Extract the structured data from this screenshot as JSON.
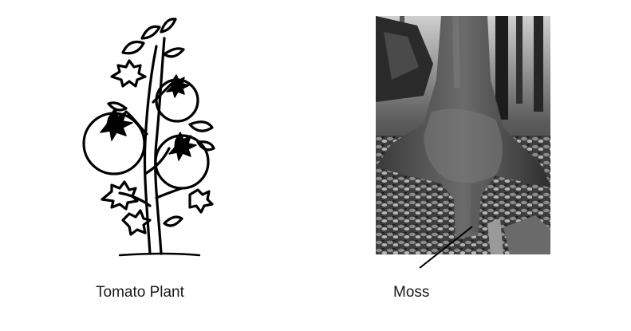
{
  "left_panel": {
    "caption": "Tomato Plant",
    "illustration": "tomato-plant-line-art"
  },
  "right_panel": {
    "caption": "Moss",
    "photo": "moss-covered-tree-trunk-grayscale"
  },
  "colors": {
    "background": "#ffffff",
    "ink": "#000000",
    "text": "#1a1a1a"
  }
}
